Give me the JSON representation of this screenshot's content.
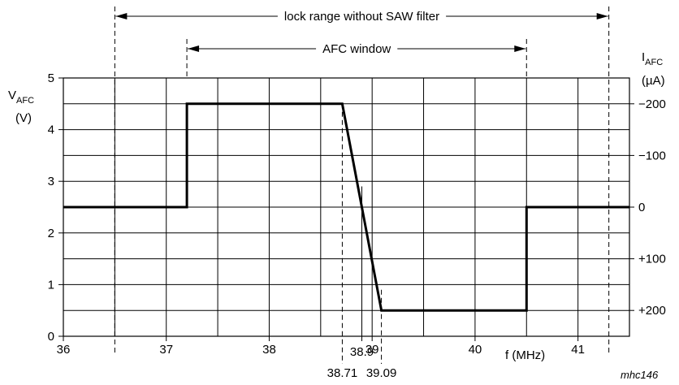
{
  "chart_data": {
    "type": "line",
    "x_label": "f (MHz)",
    "y_left_label": {
      "main": "V",
      "sub": "AFC",
      "unit": "(V)"
    },
    "y_right_label": {
      "main": "I",
      "sub": "AFC",
      "unit": "(µA)"
    },
    "xlim": [
      36,
      41.5
    ],
    "ylim": [
      0,
      5
    ],
    "x_ticks": [
      36,
      37,
      38,
      39,
      40,
      41
    ],
    "x_tick_labels": [
      "36",
      "37",
      "38",
      "39",
      "40",
      "41"
    ],
    "y_ticks": [
      0,
      1,
      2,
      3,
      4,
      5
    ],
    "y_tick_labels": [
      "0",
      "1",
      "2",
      "3",
      "4",
      "5"
    ],
    "y_right_ticks": [
      {
        "y": 4.5,
        "label": "−200"
      },
      {
        "y": 3.5,
        "label": "−100"
      },
      {
        "y": 2.5,
        "label": "0"
      },
      {
        "y": 1.5,
        "label": "+100"
      },
      {
        "y": 0.5,
        "label": "+200"
      }
    ],
    "grid": true,
    "series": [
      {
        "x": [
          36,
          37.2,
          37.2,
          38.71,
          39.09,
          40.5,
          40.5,
          41.5
        ],
        "y": [
          2.5,
          2.5,
          4.5,
          4.5,
          0.5,
          0.5,
          2.5,
          2.5
        ]
      }
    ],
    "markers": [
      {
        "x": 38.71,
        "label": "38.71",
        "y_top": 4.5
      },
      {
        "x": 38.9,
        "label": "38.9",
        "y_top": 2.9
      },
      {
        "x": 39.09,
        "label": "39.09",
        "y_top": 0.9
      }
    ],
    "annotations": [
      {
        "text": "lock range without SAW filter",
        "x_start": 36.5,
        "x_end": 41.3
      },
      {
        "text": "AFC window",
        "x_start": 37.2,
        "x_end": 40.5
      }
    ],
    "credit": "mhc146"
  }
}
